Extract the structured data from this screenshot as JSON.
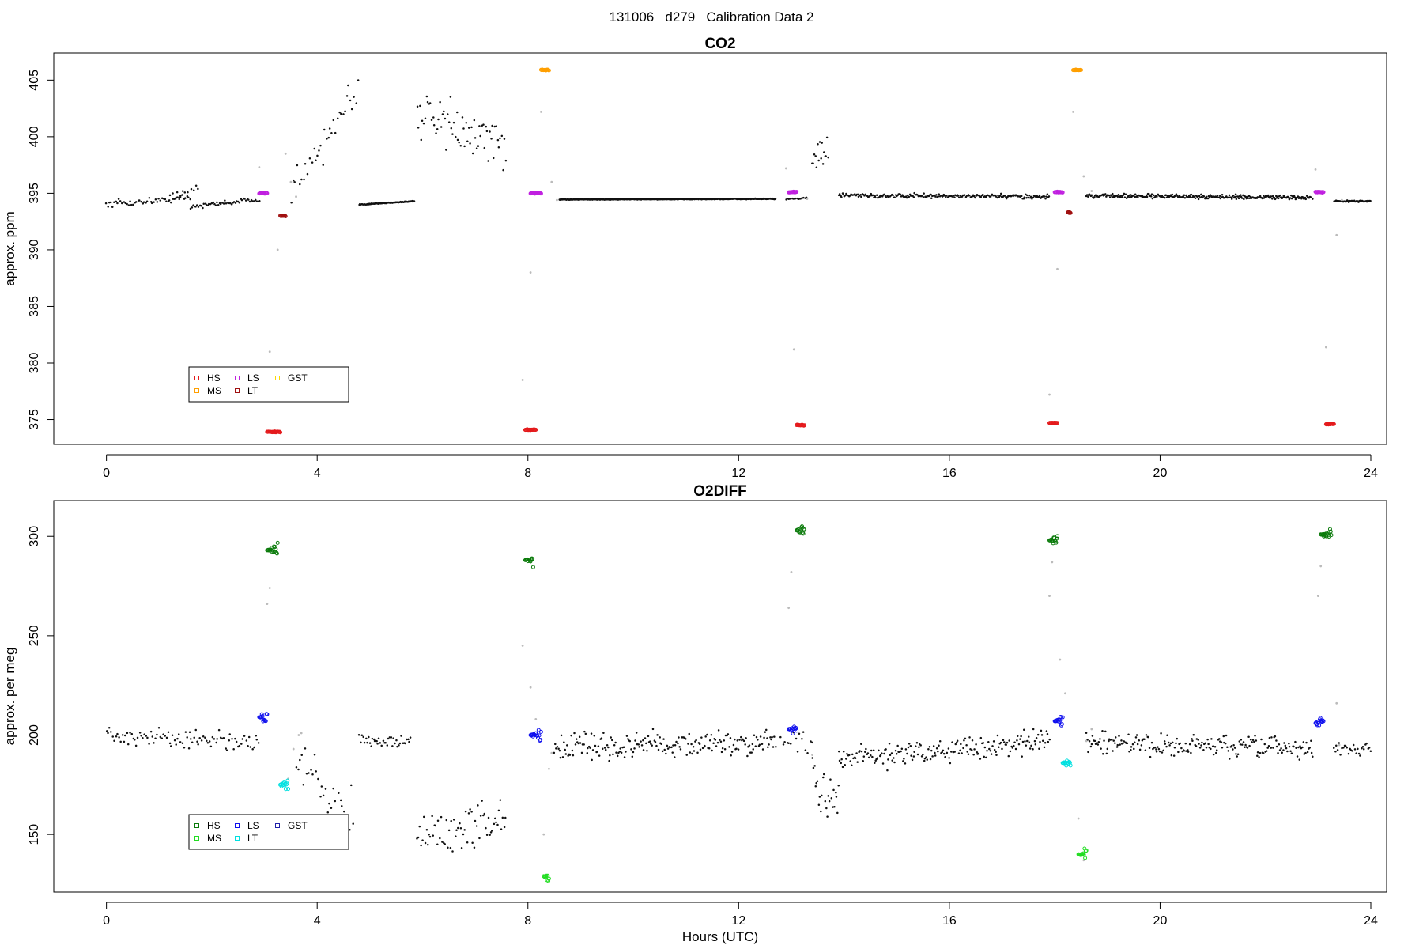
{
  "page_title": "131006   d279   Calibration Data 2",
  "chart_data": [
    {
      "type": "scatter",
      "title": "CO2",
      "xlabel": "",
      "ylabel": "approx. ppm",
      "xlim": [
        -1,
        24.3
      ],
      "ylim": [
        372.8,
        407.4
      ],
      "xticks": [
        0,
        4,
        8,
        12,
        16,
        20,
        24
      ],
      "yticks": [
        375,
        380,
        385,
        390,
        395,
        400,
        405
      ],
      "colors": {
        "ambient": "#111111",
        "flush": "#bbbbbb"
      },
      "legend": {
        "position": "bottom-left",
        "entries": [
          {
            "label": "HS",
            "color": "#e41a1c"
          },
          {
            "label": "MS",
            "color": "#ff9f00"
          },
          {
            "label": "LS",
            "color": "#c020e0"
          },
          {
            "label": "LT",
            "color": "#a01010"
          },
          {
            "label": "GST",
            "color": "#ffd800"
          }
        ]
      },
      "ambient_segments": [
        {
          "x0": 0.0,
          "x1": 1.6,
          "y0": 394.0,
          "y1": 394.6,
          "noise": 0.45,
          "step": 0.03
        },
        {
          "x0": 1.2,
          "x1": 1.8,
          "y0": 394.8,
          "y1": 395.6,
          "noise": 0.8,
          "step": 0.05
        },
        {
          "x0": 1.6,
          "x1": 2.9,
          "y0": 393.8,
          "y1": 394.5,
          "noise": 0.3,
          "step": 0.025
        },
        {
          "x0": 3.5,
          "x1": 4.0,
          "y0": 395.0,
          "y1": 399.0,
          "noise": 2.0,
          "step": 0.04
        },
        {
          "x0": 4.0,
          "x1": 4.8,
          "y0": 398.0,
          "y1": 404.0,
          "noise": 3.0,
          "step": 0.035
        },
        {
          "x0": 4.8,
          "x1": 5.85,
          "y0": 394.0,
          "y1": 394.3,
          "noise": 0.06,
          "step": 0.012
        },
        {
          "x0": 5.9,
          "x1": 7.6,
          "y0": 402.0,
          "y1": 399.0,
          "noise": 3.2,
          "step": 0.025
        },
        {
          "x0": 8.6,
          "x1": 12.7,
          "y0": 394.45,
          "y1": 394.5,
          "noise": 0.05,
          "step": 0.01
        },
        {
          "x0": 12.9,
          "x1": 13.3,
          "y0": 394.5,
          "y1": 394.6,
          "noise": 0.1,
          "step": 0.03
        },
        {
          "x0": 13.4,
          "x1": 13.7,
          "y0": 398.0,
          "y1": 399.0,
          "noise": 2.2,
          "step": 0.02
        },
        {
          "x0": 13.9,
          "x1": 17.9,
          "y0": 394.8,
          "y1": 394.7,
          "noise": 0.28,
          "step": 0.018
        },
        {
          "x0": 18.6,
          "x1": 22.9,
          "y0": 394.8,
          "y1": 394.6,
          "noise": 0.28,
          "step": 0.015
        },
        {
          "x0": 23.3,
          "x1": 24.0,
          "y0": 394.3,
          "y1": 394.3,
          "noise": 0.1,
          "step": 0.015
        }
      ],
      "flush_points": [
        [
          2.9,
          397.3
        ],
        [
          3.1,
          381.0
        ],
        [
          3.25,
          390.0
        ],
        [
          3.4,
          398.5
        ],
        [
          3.5,
          396.0
        ],
        [
          3.6,
          394.7
        ],
        [
          7.9,
          378.5
        ],
        [
          8.05,
          388.0
        ],
        [
          8.25,
          402.2
        ],
        [
          8.45,
          396.0
        ],
        [
          8.55,
          394.4
        ],
        [
          12.9,
          397.2
        ],
        [
          13.05,
          381.2
        ],
        [
          13.3,
          394.5
        ],
        [
          17.9,
          377.2
        ],
        [
          18.05,
          388.3
        ],
        [
          18.35,
          402.2
        ],
        [
          18.55,
          396.5
        ],
        [
          18.7,
          395.2
        ],
        [
          22.95,
          397.1
        ],
        [
          23.15,
          381.4
        ],
        [
          23.35,
          391.3
        ],
        [
          23.45,
          394.4
        ]
      ],
      "calibration_groups": [
        {
          "gas": "HS",
          "color": "#e41a1c",
          "x0": 3.05,
          "x1": 3.3,
          "y": 373.9
        },
        {
          "gas": "LS",
          "color": "#c020e0",
          "x0": 2.9,
          "x1": 3.05,
          "y": 395.0
        },
        {
          "gas": "LT",
          "color": "#a01010",
          "x0": 3.3,
          "x1": 3.4,
          "y": 393.0
        },
        {
          "gas": "HS",
          "color": "#e41a1c",
          "x0": 7.95,
          "x1": 8.15,
          "y": 374.1
        },
        {
          "gas": "LS",
          "color": "#c020e0",
          "x0": 8.05,
          "x1": 8.25,
          "y": 395.0
        },
        {
          "gas": "MS",
          "color": "#ff9f00",
          "x0": 8.25,
          "x1": 8.4,
          "y": 405.9
        },
        {
          "gas": "LS",
          "color": "#c020e0",
          "x0": 12.95,
          "x1": 13.1,
          "y": 395.1
        },
        {
          "gas": "HS",
          "color": "#e41a1c",
          "x0": 13.1,
          "x1": 13.25,
          "y": 374.5
        },
        {
          "gas": "HS",
          "color": "#e41a1c",
          "x0": 17.9,
          "x1": 18.05,
          "y": 374.7
        },
        {
          "gas": "LS",
          "color": "#c020e0",
          "x0": 18.0,
          "x1": 18.15,
          "y": 395.1
        },
        {
          "gas": "LT",
          "color": "#a01010",
          "x0": 18.25,
          "x1": 18.3,
          "y": 393.3
        },
        {
          "gas": "MS",
          "color": "#ff9f00",
          "x0": 18.35,
          "x1": 18.5,
          "y": 405.9
        },
        {
          "gas": "LS",
          "color": "#c020e0",
          "x0": 22.95,
          "x1": 23.1,
          "y": 395.1
        },
        {
          "gas": "HS",
          "color": "#e41a1c",
          "x0": 23.15,
          "x1": 23.3,
          "y": 374.6
        }
      ]
    },
    {
      "type": "scatter",
      "title": "O2DIFF",
      "xlabel": "Hours (UTC)",
      "ylabel": "approx. per meg",
      "xlim": [
        -1,
        24.3
      ],
      "ylim": [
        121,
        318
      ],
      "xticks": [
        0,
        4,
        8,
        12,
        16,
        20,
        24
      ],
      "yticks": [
        150,
        200,
        250,
        300
      ],
      "colors": {
        "ambient": "#111111",
        "flush": "#bbbbbb"
      },
      "legend": {
        "position": "bottom-left",
        "entries": [
          {
            "label": "HS",
            "color": "#0a7a0a"
          },
          {
            "label": "MS",
            "color": "#22dd22"
          },
          {
            "label": "LS",
            "color": "#1010ee"
          },
          {
            "label": "LT",
            "color": "#00e0e0"
          },
          {
            "label": "GST",
            "color": "#2020aa"
          }
        ]
      },
      "ambient_segments": [
        {
          "x0": 0.0,
          "x1": 1.6,
          "y0": 200.0,
          "y1": 198.0,
          "noise": 7.0,
          "step": 0.03
        },
        {
          "x0": 1.6,
          "x1": 2.9,
          "y0": 199.0,
          "y1": 196.0,
          "noise": 6.5,
          "step": 0.03
        },
        {
          "x0": 3.6,
          "x1": 4.7,
          "y0": 185.0,
          "y1": 160.0,
          "noise": 19.0,
          "step": 0.035
        },
        {
          "x0": 4.8,
          "x1": 5.8,
          "y0": 198.0,
          "y1": 196.0,
          "noise": 5.0,
          "step": 0.025
        },
        {
          "x0": 5.9,
          "x1": 7.6,
          "y0": 148.0,
          "y1": 158.0,
          "noise": 17.0,
          "step": 0.025
        },
        {
          "x0": 8.5,
          "x1": 12.7,
          "y0": 194.0,
          "y1": 196.0,
          "noise": 9.0,
          "step": 0.02
        },
        {
          "x0": 12.8,
          "x1": 13.4,
          "y0": 196.0,
          "y1": 196.0,
          "noise": 8.0,
          "step": 0.04
        },
        {
          "x0": 13.4,
          "x1": 13.9,
          "y0": 175.0,
          "y1": 165.0,
          "noise": 20.0,
          "step": 0.02
        },
        {
          "x0": 13.9,
          "x1": 17.9,
          "y0": 188.0,
          "y1": 197.0,
          "noise": 8.5,
          "step": 0.02
        },
        {
          "x0": 18.6,
          "x1": 22.9,
          "y0": 196.0,
          "y1": 193.0,
          "noise": 8.0,
          "step": 0.02
        },
        {
          "x0": 23.3,
          "x1": 24.0,
          "y0": 193.0,
          "y1": 193.0,
          "noise": 5.0,
          "step": 0.025
        }
      ],
      "flush_points": [
        [
          3.1,
          274.0
        ],
        [
          3.05,
          266.0
        ],
        [
          3.45,
          178.0
        ],
        [
          3.55,
          193.0
        ],
        [
          3.65,
          200.0
        ],
        [
          3.7,
          201.0
        ],
        [
          7.9,
          245.0
        ],
        [
          8.05,
          224.0
        ],
        [
          8.15,
          208.0
        ],
        [
          8.3,
          150.0
        ],
        [
          8.4,
          183.0
        ],
        [
          8.45,
          191.0
        ],
        [
          13.0,
          282.0
        ],
        [
          12.95,
          264.0
        ],
        [
          13.4,
          190.0
        ],
        [
          17.95,
          287.0
        ],
        [
          17.9,
          270.0
        ],
        [
          18.1,
          238.0
        ],
        [
          18.2,
          221.0
        ],
        [
          18.45,
          158.0
        ],
        [
          18.55,
          137.0
        ],
        [
          18.6,
          197.0
        ],
        [
          18.7,
          203.0
        ],
        [
          23.05,
          285.0
        ],
        [
          23.0,
          270.0
        ],
        [
          23.35,
          216.0
        ],
        [
          23.4,
          195.0
        ]
      ],
      "calibration_groups": [
        {
          "gas": "HS",
          "color": "#0a7a0a",
          "x0": 3.05,
          "x1": 3.25,
          "y": 293.0
        },
        {
          "gas": "LS",
          "color": "#1010ee",
          "x0": 2.9,
          "x1": 3.05,
          "y": 209.0
        },
        {
          "gas": "LT",
          "color": "#00e0e0",
          "x0": 3.3,
          "x1": 3.45,
          "y": 175.0
        },
        {
          "gas": "HS",
          "color": "#0a7a0a",
          "x0": 7.95,
          "x1": 8.1,
          "y": 288.0
        },
        {
          "gas": "LS",
          "color": "#1010ee",
          "x0": 8.05,
          "x1": 8.25,
          "y": 200.0
        },
        {
          "gas": "MS",
          "color": "#22dd22",
          "x0": 8.3,
          "x1": 8.4,
          "y": 129.0
        },
        {
          "gas": "LS",
          "color": "#1010ee",
          "x0": 12.95,
          "x1": 13.1,
          "y": 203.0
        },
        {
          "gas": "HS",
          "color": "#0a7a0a",
          "x0": 13.1,
          "x1": 13.25,
          "y": 303.0
        },
        {
          "gas": "HS",
          "color": "#0a7a0a",
          "x0": 17.9,
          "x1": 18.05,
          "y": 298.0
        },
        {
          "gas": "LS",
          "color": "#1010ee",
          "x0": 18.0,
          "x1": 18.15,
          "y": 207.0
        },
        {
          "gas": "LT",
          "color": "#00e0e0",
          "x0": 18.15,
          "x1": 18.3,
          "y": 186.0
        },
        {
          "gas": "MS",
          "color": "#22dd22",
          "x0": 18.45,
          "x1": 18.6,
          "y": 140.0
        },
        {
          "gas": "LS",
          "color": "#1010ee",
          "x0": 22.95,
          "x1": 23.1,
          "y": 206.0
        },
        {
          "gas": "HS",
          "color": "#0a7a0a",
          "x0": 23.05,
          "x1": 23.25,
          "y": 301.0
        }
      ]
    }
  ]
}
